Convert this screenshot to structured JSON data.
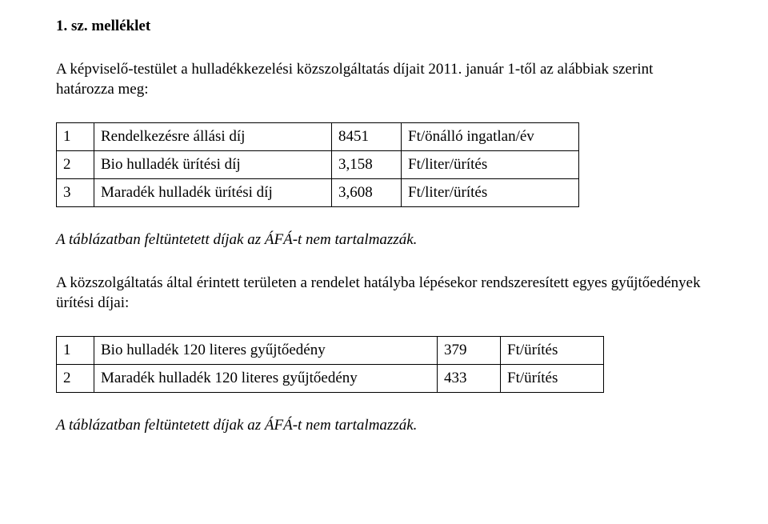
{
  "heading": "1. sz. melléklet",
  "intro": "A képviselő-testület a hulladékkezelési közszolgáltatás díjait 2011. január 1-től az alábbiak szerint határozza meg:",
  "table1": {
    "columns": [
      "num",
      "desc",
      "val",
      "unit"
    ],
    "rows": [
      {
        "num": "1",
        "desc": "Rendelkezésre állási díj",
        "val": "8451",
        "unit": "Ft/önálló ingatlan/év"
      },
      {
        "num": "2",
        "desc": "Bio hulladék ürítési díj",
        "val": "3,158",
        "unit": "Ft/liter/ürítés"
      },
      {
        "num": "3",
        "desc": "Maradék hulladék ürítési díj",
        "val": "3,608",
        "unit": "Ft/liter/ürítés"
      }
    ]
  },
  "note1": "A táblázatban feltüntetett díjak az ÁFÁ-t nem tartalmazzák.",
  "mid": "A közszolgáltatás által érintett területen a rendelet hatályba lépésekor rendszeresített egyes gyűjtőedények ürítési díjai:",
  "table2": {
    "columns": [
      "num",
      "desc",
      "val",
      "unit"
    ],
    "rows": [
      {
        "num": "1",
        "desc": "Bio hulladék 120 literes gyűjtőedény",
        "val": "379",
        "unit": "Ft/ürítés"
      },
      {
        "num": "2",
        "desc": "Maradék hulladék 120 literes gyűjtőedény",
        "val": "433",
        "unit": "Ft/ürítés"
      }
    ]
  },
  "note2": "A táblázatban feltüntetett díjak az ÁFÁ-t nem tartalmazzák."
}
